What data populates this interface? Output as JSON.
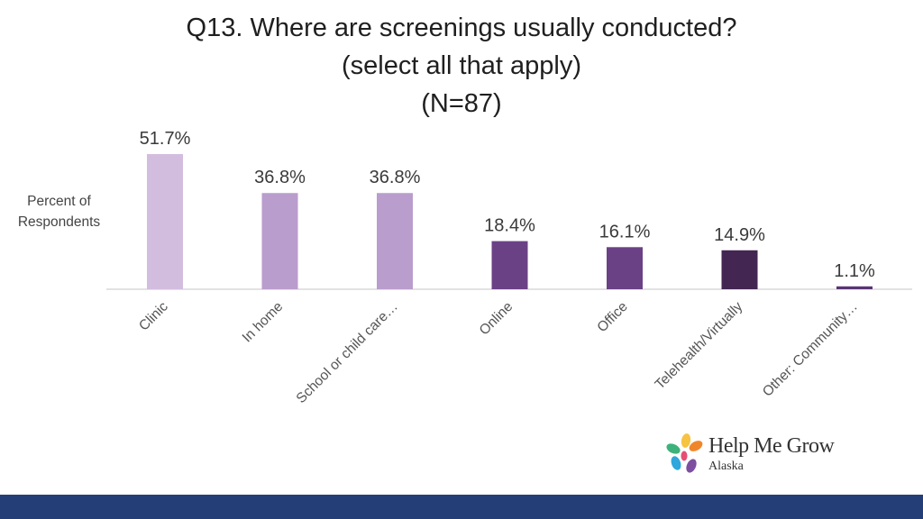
{
  "page": {
    "logo": {
      "name": "Help Me Grow",
      "sub": "Alaska",
      "petal_colors": [
        "#f6c343",
        "#f0862b",
        "#3db27b",
        "#2fa6dc",
        "#7e4fa0",
        "#e54f75"
      ]
    },
    "footer_color": "#243f78"
  },
  "chart_data": {
    "type": "bar",
    "title_lines": [
      "Q13. Where are screenings usually conducted?",
      "(select all that apply)",
      "(N=87)"
    ],
    "ylabel_lines": [
      "Percent of",
      "Respondents"
    ],
    "xlabel": "",
    "categories": [
      "Clinic",
      "In home",
      "School or child care…",
      "Online",
      "Office",
      "Telehealth/Virtually",
      "Other: Community…"
    ],
    "values": [
      51.7,
      36.8,
      36.8,
      18.4,
      16.1,
      14.9,
      1.1
    ],
    "value_labels": [
      "51.7%",
      "36.8%",
      "36.8%",
      "18.4%",
      "16.1%",
      "14.9%",
      "1.1%"
    ],
    "colors": [
      "#d3bddf",
      "#b99dcd",
      "#b99dcd",
      "#6b4186",
      "#6b4186",
      "#432652",
      "#5a3474"
    ],
    "ylim": [
      0,
      51.7
    ],
    "grid": false,
    "legend": "none"
  }
}
